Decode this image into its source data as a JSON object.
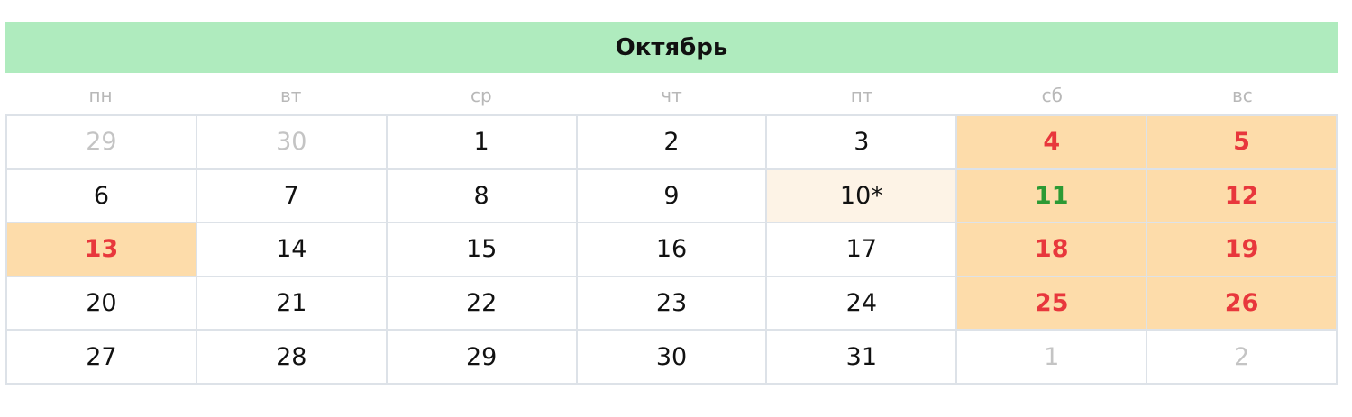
{
  "month_title": "Октябрь",
  "weekdays": [
    "пн",
    "вт",
    "ср",
    "чт",
    "пт",
    "сб",
    "вс"
  ],
  "colors": {
    "header_bg": "#afebbe",
    "holiday_bg": "#fddcaa",
    "holiday_text": "#e8373c",
    "special_text": "#2c9a34",
    "short_day_bg": "#fdf3e6",
    "other_month_text": "#c4c4c4"
  },
  "days": [
    {
      "label": "29",
      "type": "other"
    },
    {
      "label": "30",
      "type": "other"
    },
    {
      "label": "1",
      "type": "normal"
    },
    {
      "label": "2",
      "type": "normal"
    },
    {
      "label": "3",
      "type": "normal"
    },
    {
      "label": "4",
      "type": "holiday"
    },
    {
      "label": "5",
      "type": "holiday"
    },
    {
      "label": "6",
      "type": "normal"
    },
    {
      "label": "7",
      "type": "normal"
    },
    {
      "label": "8",
      "type": "normal"
    },
    {
      "label": "9",
      "type": "normal"
    },
    {
      "label": "10*",
      "type": "short"
    },
    {
      "label": "11",
      "type": "special"
    },
    {
      "label": "12",
      "type": "holiday"
    },
    {
      "label": "13",
      "type": "holiday"
    },
    {
      "label": "14",
      "type": "normal"
    },
    {
      "label": "15",
      "type": "normal"
    },
    {
      "label": "16",
      "type": "normal"
    },
    {
      "label": "17",
      "type": "normal"
    },
    {
      "label": "18",
      "type": "holiday"
    },
    {
      "label": "19",
      "type": "holiday"
    },
    {
      "label": "20",
      "type": "normal"
    },
    {
      "label": "21",
      "type": "normal"
    },
    {
      "label": "22",
      "type": "normal"
    },
    {
      "label": "23",
      "type": "normal"
    },
    {
      "label": "24",
      "type": "normal"
    },
    {
      "label": "25",
      "type": "holiday"
    },
    {
      "label": "26",
      "type": "holiday"
    },
    {
      "label": "27",
      "type": "normal"
    },
    {
      "label": "28",
      "type": "normal"
    },
    {
      "label": "29",
      "type": "normal"
    },
    {
      "label": "30",
      "type": "normal"
    },
    {
      "label": "31",
      "type": "normal"
    },
    {
      "label": "1",
      "type": "other"
    },
    {
      "label": "2",
      "type": "other"
    }
  ]
}
